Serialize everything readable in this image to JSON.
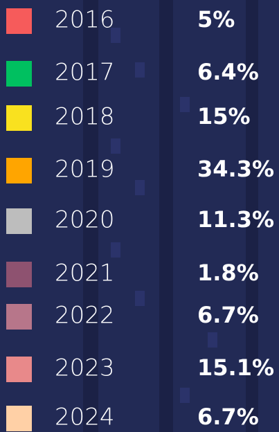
{
  "legend": {
    "items": [
      {
        "label": "2016",
        "value": "5%",
        "color": "#f65b5b"
      },
      {
        "label": "2017",
        "value": "6.4%",
        "color": "#00c060"
      },
      {
        "label": "2018",
        "value": "15%",
        "color": "#f9e11f"
      },
      {
        "label": "2019",
        "value": "34.3%",
        "color": "#ffa500"
      },
      {
        "label": "2020",
        "value": "11.3%",
        "color": "#bdbdbd"
      },
      {
        "label": "2021",
        "value": "1.8%",
        "color": "#8e5270"
      },
      {
        "label": "2022",
        "value": "6.7%",
        "color": "#b7768a"
      },
      {
        "label": "2023",
        "value": "15.1%",
        "color": "#e8898a"
      },
      {
        "label": "2024",
        "value": "6.7%",
        "color": "#ffd0a6"
      }
    ]
  }
}
